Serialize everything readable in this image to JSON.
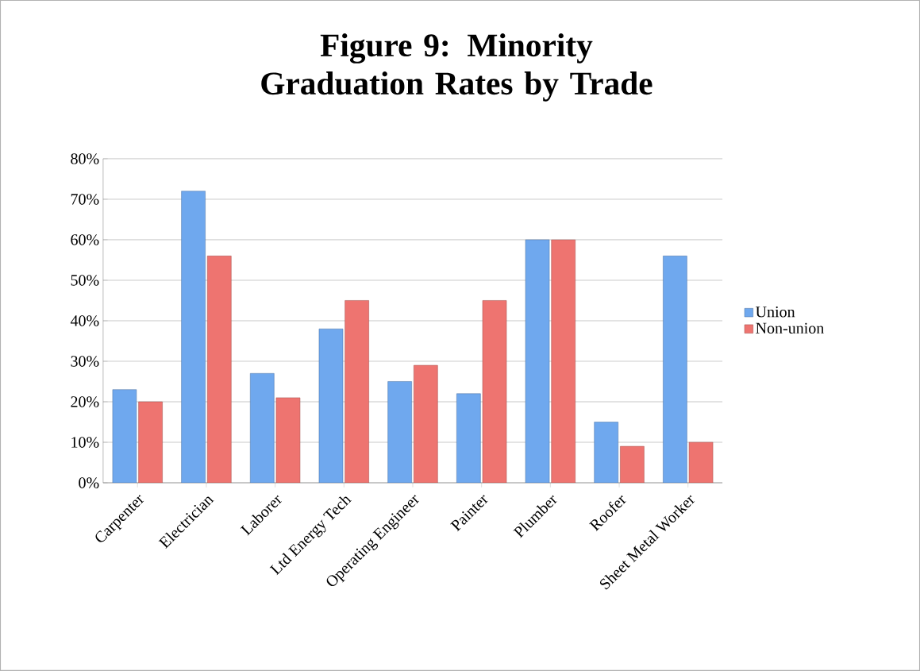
{
  "chart_data": {
    "type": "bar",
    "title": "Figure 9: Minority Graduation Rates by Trade",
    "categories": [
      "Carpenter",
      "Electrician",
      "Laborer",
      "Ltd Energy Tech",
      "Operating Engineer",
      "Painter",
      "Plumber",
      "Roofer",
      "Sheet Metal Worker"
    ],
    "series": [
      {
        "name": "Union",
        "color": "#6fa8ee",
        "values": [
          23,
          72,
          27,
          38,
          25,
          22,
          60,
          15,
          56
        ]
      },
      {
        "name": "Non-union",
        "color": "#ee7470",
        "values": [
          20,
          56,
          21,
          45,
          29,
          45,
          60,
          9,
          10
        ]
      }
    ],
    "ylim": [
      0,
      80
    ],
    "yticks": [
      {
        "value": 0,
        "label": "0%"
      },
      {
        "value": 10,
        "label": "10%"
      },
      {
        "value": 20,
        "label": "20%"
      },
      {
        "value": 30,
        "label": "30%"
      },
      {
        "value": 40,
        "label": "40%"
      },
      {
        "value": 50,
        "label": "50%"
      },
      {
        "value": 60,
        "label": "60%"
      },
      {
        "value": 70,
        "label": "70%"
      },
      {
        "value": 80,
        "label": "80%"
      }
    ],
    "grid": "y",
    "legend": "right"
  }
}
